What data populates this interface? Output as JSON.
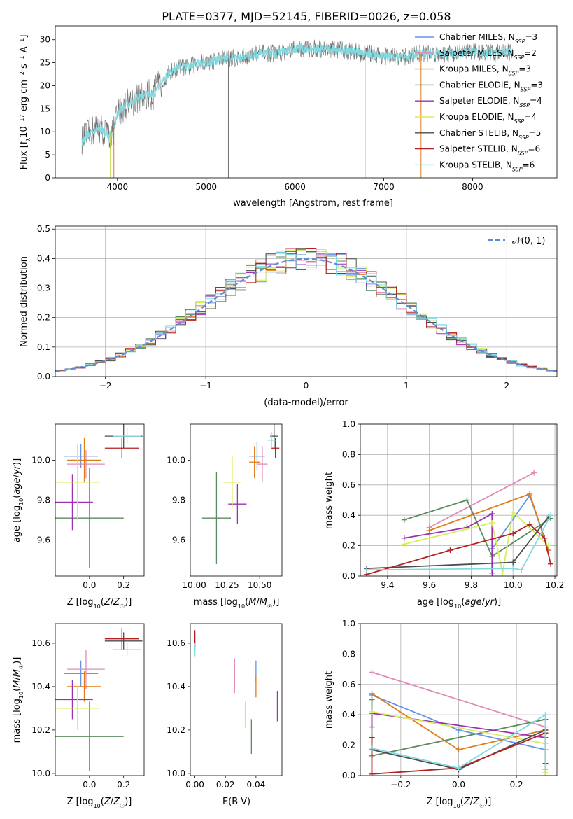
{
  "figure": {
    "title": "PLATE=0377, MJD=52145, FIBERID=0026, z=0.058"
  },
  "models": [
    {
      "name": "Chabrier MILES",
      "nssp": "3",
      "color": "#6495ed"
    },
    {
      "name": "Salpeter MILES",
      "nssp": "2",
      "color": "#e08ab8"
    },
    {
      "name": "Kroupa MILES",
      "nssp": "3",
      "color": "#e07b1a"
    },
    {
      "name": "Chabrier ELODIE",
      "nssp": "3",
      "color": "#5b8a5f"
    },
    {
      "name": "Salpeter ELODIE",
      "nssp": "4",
      "color": "#9b30b4"
    },
    {
      "name": "Kroupa ELODIE",
      "nssp": "4",
      "color": "#d7ee5a"
    },
    {
      "name": "Chabrier STELIB",
      "nssp": "5",
      "color": "#4d4d4d"
    },
    {
      "name": "Salpeter STELIB",
      "nssp": "6",
      "color": "#b22222"
    },
    {
      "name": "Kroupa STELIB",
      "nssp": "6",
      "color": "#7fdbe0"
    }
  ],
  "chart_data": [
    {
      "id": "spectrum",
      "type": "line",
      "xlabel": "wavelength [Angstrom, rest frame]",
      "ylabel": "Flux [f_λ10^-17 erg cm^-2 s^-1 A^-1]",
      "xlim": [
        3300,
        8950
      ],
      "ylim": [
        0,
        33
      ],
      "xticks": [
        4000,
        5000,
        6000,
        7000,
        8000
      ],
      "yticks": [
        0,
        5,
        10,
        15,
        20,
        25,
        30
      ],
      "legend": "right",
      "continuum": {
        "x": [
          3600,
          3700,
          3800,
          3900,
          3950,
          4000,
          4100,
          4200,
          4300,
          4400,
          4500,
          4600,
          4700,
          4800,
          4900,
          5000,
          5200,
          5400,
          5600,
          5800,
          6000,
          6200,
          6400,
          6600,
          6800,
          7000,
          7200,
          7400,
          7600,
          7800,
          8000,
          8200,
          8450
        ],
        "y": [
          8,
          10,
          11,
          9,
          10,
          14,
          16,
          17,
          18,
          18,
          21,
          23,
          24,
          24,
          25,
          25,
          26,
          26,
          27,
          27,
          28,
          28,
          28,
          27.5,
          27,
          26.5,
          26,
          27,
          27,
          27,
          27.5,
          27,
          27.5
        ]
      },
      "noisy_model": "Chabrier STELIB",
      "smooth_model": "Kroupa STELIB"
    },
    {
      "id": "residuals",
      "type": "step",
      "xlabel": "(data-model)/error",
      "ylabel": "Normed distribution",
      "xlim": [
        -2.5,
        2.5
      ],
      "ylim": [
        0,
        0.51
      ],
      "xticks": [
        -2,
        -1,
        0,
        1,
        2
      ],
      "yticks": [
        0.0,
        0.1,
        0.2,
        0.3,
        0.4,
        0.5
      ],
      "grid": true,
      "legend": "top-right",
      "reference_label": "𝒩(0, 1)",
      "bin_width": 0.1
    },
    {
      "id": "age-vs-z",
      "type": "errorbar",
      "xlabel": "Z [log10(Z/Z☉)]",
      "ylabel": "age  [log10(age/yr)]",
      "xlim": [
        -0.2,
        0.32
      ],
      "ylim": [
        9.42,
        10.18
      ],
      "xticks": [
        0.0,
        0.2
      ],
      "yticks": [
        9.6,
        9.8,
        10.0
      ],
      "points": [
        {
          "model": "Chabrier MILES",
          "x": -0.05,
          "y": 10.02,
          "xerr": 0.1,
          "yerr": 0.06
        },
        {
          "model": "Salpeter MILES",
          "x": -0.02,
          "y": 9.98,
          "xerr": 0.11,
          "yerr": 0.07
        },
        {
          "model": "Kroupa MILES",
          "x": -0.03,
          "y": 10.0,
          "xerr": 0.1,
          "yerr": 0.11
        },
        {
          "model": "Chabrier ELODIE",
          "x": 0.0,
          "y": 9.71,
          "xerr": 0.2,
          "yerr": 0.25
        },
        {
          "model": "Salpeter ELODIE",
          "x": -0.1,
          "y": 9.79,
          "xerr": 0.12,
          "yerr": 0.14
        },
        {
          "model": "Kroupa ELODIE",
          "x": -0.07,
          "y": 9.89,
          "xerr": 0.13,
          "yerr": 0.19
        },
        {
          "model": "Chabrier STELIB",
          "x": 0.2,
          "y": 10.12,
          "xerr": 0.11,
          "yerr": 0.06
        },
        {
          "model": "Salpeter STELIB",
          "x": 0.19,
          "y": 10.06,
          "xerr": 0.1,
          "yerr": 0.05
        },
        {
          "model": "Kroupa STELIB",
          "x": 0.22,
          "y": 10.12,
          "xerr": 0.08,
          "yerr": 0.04
        }
      ]
    },
    {
      "id": "age-vs-mass",
      "type": "errorbar",
      "xlabel": "mass [log10(M/M☉)]",
      "ylabel": "",
      "xlim": [
        9.97,
        10.67
      ],
      "ylim": [
        9.42,
        10.18
      ],
      "xticks": [
        10.0,
        10.25,
        10.5
      ],
      "yticks": [
        9.6,
        9.8,
        10.0
      ],
      "points": [
        {
          "model": "Chabrier MILES",
          "x": 10.48,
          "y": 10.02,
          "xerr": 0.06,
          "yerr": 0.07
        },
        {
          "model": "Salpeter MILES",
          "x": 10.52,
          "y": 9.98,
          "xerr": 0.04,
          "yerr": 0.09
        },
        {
          "model": "Kroupa MILES",
          "x": 10.46,
          "y": 9.99,
          "xerr": 0.04,
          "yerr": 0.08
        },
        {
          "model": "Chabrier ELODIE",
          "x": 10.17,
          "y": 9.71,
          "xerr": 0.11,
          "yerr": 0.23
        },
        {
          "model": "Salpeter ELODIE",
          "x": 10.33,
          "y": 9.78,
          "xerr": 0.07,
          "yerr": 0.1
        },
        {
          "model": "Kroupa ELODIE",
          "x": 10.29,
          "y": 9.89,
          "xerr": 0.07,
          "yerr": 0.13
        },
        {
          "model": "Chabrier STELIB",
          "x": 10.61,
          "y": 10.12,
          "xerr": 0.03,
          "yerr": 0.06
        },
        {
          "model": "Salpeter STELIB",
          "x": 10.62,
          "y": 10.06,
          "xerr": 0.03,
          "yerr": 0.05
        },
        {
          "model": "Kroupa STELIB",
          "x": 10.59,
          "y": 10.1,
          "xerr": 0.03,
          "yerr": 0.04
        }
      ]
    },
    {
      "id": "weight-vs-age",
      "type": "line",
      "xlabel": "age  [log10(age/yr)]",
      "ylabel": "mass weight",
      "xlim": [
        9.27,
        10.21
      ],
      "ylim": [
        0,
        1
      ],
      "xticks": [
        9.4,
        9.6,
        9.8,
        10.0,
        10.2
      ],
      "yticks": [
        0.0,
        0.2,
        0.4,
        0.6,
        0.8,
        1.0
      ],
      "grid": true,
      "series": [
        {
          "model": "Chabrier MILES",
          "x": [
            9.9,
            10.08,
            10.17
          ],
          "y": [
            0.18,
            0.53,
            0.17
          ]
        },
        {
          "model": "Salpeter MILES",
          "x": [
            9.6,
            10.1
          ],
          "y": [
            0.32,
            0.68
          ]
        },
        {
          "model": "Kroupa MILES",
          "x": [
            9.6,
            10.08,
            10.17
          ],
          "y": [
            0.3,
            0.54,
            0.17
          ]
        },
        {
          "model": "Chabrier ELODIE",
          "x": [
            9.48,
            9.78,
            9.9,
            10.18
          ],
          "y": [
            0.37,
            0.5,
            0.13,
            0.38
          ]
        },
        {
          "model": "Salpeter ELODIE",
          "x": [
            9.48,
            9.78,
            9.9,
            9.9
          ],
          "y": [
            0.25,
            0.32,
            0.41,
            0.02
          ]
        },
        {
          "model": "Kroupa ELODIE",
          "x": [
            9.48,
            9.9,
            9.95,
            10.0,
            10.17
          ],
          "y": [
            0.21,
            0.35,
            0.02,
            0.42,
            0.2
          ]
        },
        {
          "model": "Chabrier STELIB",
          "x": [
            9.3,
            10.0,
            10.17
          ],
          "y": [
            0.05,
            0.09,
            0.39
          ]
        },
        {
          "model": "Salpeter STELIB",
          "x": [
            9.3,
            9.7,
            10.0,
            10.08,
            10.15,
            10.18
          ],
          "y": [
            0.01,
            0.17,
            0.28,
            0.34,
            0.25,
            0.08
          ]
        },
        {
          "model": "Kroupa STELIB",
          "x": [
            9.3,
            10.0,
            10.04,
            10.18
          ],
          "y": [
            0.04,
            0.05,
            0.04,
            0.4
          ]
        }
      ]
    },
    {
      "id": "mass-vs-z",
      "type": "errorbar",
      "xlabel": "Z [log10(Z/Z☉)]",
      "ylabel": "mass [log10(M/M☉)]",
      "xlim": [
        -0.2,
        0.32
      ],
      "ylim": [
        9.99,
        10.69
      ],
      "xticks": [
        0.0,
        0.2
      ],
      "yticks": [
        10.0,
        10.2,
        10.4,
        10.6
      ],
      "points": [
        {
          "model": "Chabrier MILES",
          "x": -0.05,
          "y": 10.46,
          "xerr": 0.1,
          "yerr": 0.06
        },
        {
          "model": "Salpeter MILES",
          "x": -0.02,
          "y": 10.48,
          "xerr": 0.11,
          "yerr": 0.09
        },
        {
          "model": "Kroupa MILES",
          "x": -0.03,
          "y": 10.4,
          "xerr": 0.1,
          "yerr": 0.07
        },
        {
          "model": "Chabrier ELODIE",
          "x": 0.0,
          "y": 10.17,
          "xerr": 0.2,
          "yerr": 0.16
        },
        {
          "model": "Salpeter ELODIE",
          "x": -0.1,
          "y": 10.34,
          "xerr": 0.12,
          "yerr": 0.09
        },
        {
          "model": "Kroupa ELODIE",
          "x": -0.07,
          "y": 10.3,
          "xerr": 0.13,
          "yerr": 0.1
        },
        {
          "model": "Chabrier STELIB",
          "x": 0.2,
          "y": 10.61,
          "xerr": 0.11,
          "yerr": 0.04
        },
        {
          "model": "Salpeter STELIB",
          "x": 0.19,
          "y": 10.62,
          "xerr": 0.1,
          "yerr": 0.05
        },
        {
          "model": "Kroupa STELIB",
          "x": 0.22,
          "y": 10.57,
          "xerr": 0.08,
          "yerr": 0.03
        }
      ]
    },
    {
      "id": "mass-vs-ebv",
      "type": "errorbar",
      "xlabel": "E(B-V)",
      "ylabel": "",
      "xlim": [
        -0.003,
        0.057
      ],
      "ylim": [
        9.99,
        10.69
      ],
      "xticks": [
        0.0,
        0.02,
        0.04
      ],
      "yticks": [
        10.0,
        10.2,
        10.4,
        10.6
      ],
      "points": [
        {
          "model": "Chabrier MILES",
          "x": 0.04,
          "y": 10.47,
          "xerr": 0,
          "yerr": 0.05
        },
        {
          "model": "Salpeter MILES",
          "x": 0.026,
          "y": 10.45,
          "xerr": 0,
          "yerr": 0.08
        },
        {
          "model": "Kroupa MILES",
          "x": 0.04,
          "y": 10.4,
          "xerr": 0,
          "yerr": 0.05
        },
        {
          "model": "Chabrier ELODIE",
          "x": 0.037,
          "y": 10.17,
          "xerr": 0,
          "yerr": 0.08
        },
        {
          "model": "Salpeter ELODIE",
          "x": 0.054,
          "y": 10.31,
          "xerr": 0,
          "yerr": 0.07
        },
        {
          "model": "Kroupa ELODIE",
          "x": 0.033,
          "y": 10.27,
          "xerr": 0,
          "yerr": 0.06
        },
        {
          "model": "Chabrier STELIB",
          "x": 0.0,
          "y": 10.61,
          "xerr": 0,
          "yerr": 0.04
        },
        {
          "model": "Salpeter STELIB",
          "x": 0.0,
          "y": 10.62,
          "xerr": 0,
          "yerr": 0.04
        },
        {
          "model": "Kroupa STELIB",
          "x": 0.0,
          "y": 10.57,
          "xerr": 0,
          "yerr": 0.03
        }
      ]
    },
    {
      "id": "weight-vs-z",
      "type": "line",
      "xlabel": "Z [log10(Z/Z☉)]",
      "ylabel": "mass weight",
      "xlim": [
        -0.34,
        0.34
      ],
      "ylim": [
        0,
        1
      ],
      "xticks": [
        -0.2,
        0.0,
        0.2
      ],
      "yticks": [
        0.0,
        0.2,
        0.4,
        0.6,
        0.8,
        1.0
      ],
      "grid": true,
      "series": [
        {
          "model": "Chabrier MILES",
          "x": [
            -0.3,
            0.0,
            0.3
          ],
          "y": [
            0.53,
            0.3,
            0.17
          ]
        },
        {
          "model": "Salpeter MILES",
          "x": [
            -0.3,
            0.3
          ],
          "y": [
            0.68,
            0.32
          ]
        },
        {
          "model": "Kroupa MILES",
          "x": [
            -0.3,
            0.0,
            0.3
          ],
          "y": [
            0.54,
            0.17,
            0.3
          ]
        },
        {
          "model": "Chabrier ELODIE",
          "x": [
            -0.3,
            -0.3,
            0.3
          ],
          "y": [
            0.5,
            0.13,
            0.37
          ]
        },
        {
          "model": "Salpeter ELODIE",
          "x": [
            -0.3,
            -0.3,
            0.3,
            0.3
          ],
          "y": [
            0.32,
            0.41,
            0.25,
            0.02
          ]
        },
        {
          "model": "Kroupa ELODIE",
          "x": [
            -0.3,
            0.3,
            0.3
          ],
          "y": [
            0.42,
            0.21,
            0.02
          ]
        },
        {
          "model": "Chabrier STELIB",
          "x": [
            -0.3,
            0.0,
            0.3
          ],
          "y": [
            0.17,
            0.04,
            0.3
          ]
        },
        {
          "model": "Salpeter STELIB",
          "x": [
            -0.3,
            -0.3,
            0.0,
            0.3,
            0.3
          ],
          "y": [
            0.25,
            0.01,
            0.05,
            0.28,
            0.08
          ]
        },
        {
          "model": "Kroupa STELIB",
          "x": [
            -0.3,
            0.0,
            0.3,
            0.3
          ],
          "y": [
            0.18,
            0.05,
            0.4,
            0.04
          ]
        }
      ]
    }
  ]
}
